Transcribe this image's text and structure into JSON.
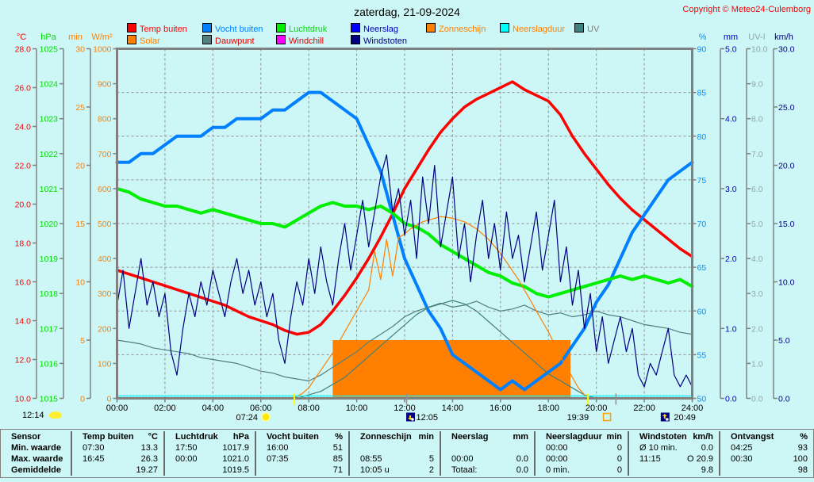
{
  "header": {
    "title": "zaterdag, 21-09-2024",
    "copyright": "Copyright © Meteo24-Culemborg"
  },
  "legend": {
    "row1": [
      {
        "label": "Temp buiten",
        "swatch": "#ff0000",
        "text_color": "#ff0000"
      },
      {
        "label": "Vocht buiten",
        "swatch": "#0080ff",
        "text_color": "#0080ff"
      },
      {
        "label": "Luchtdruk",
        "swatch": "#00ee00",
        "text_color": "#00dd00"
      },
      {
        "label": "Neerslag",
        "swatch": "#0000ff",
        "text_color": "#0000c0"
      },
      {
        "label": "Zonneschijn",
        "swatch": "#ff8000",
        "text_color": "#ff8000"
      },
      {
        "label": "Neerslagduur",
        "swatch": "#00ffff",
        "text_color": "#ff8000"
      },
      {
        "label": "UV",
        "swatch": "#3f8080",
        "text_color": "#808080"
      }
    ],
    "row2": [
      {
        "label": "Solar",
        "swatch": "#ff8000",
        "text_color": "#ff8000"
      },
      {
        "label": "Dauwpunt",
        "swatch": "#527f7f",
        "text_color": "#e00000"
      },
      {
        "label": "Windchill",
        "swatch": "#ff00ff",
        "text_color": "#e00000"
      },
      {
        "label": "Windstoten",
        "swatch": "#000080",
        "text_color": "#000080"
      }
    ]
  },
  "axes": {
    "left": [
      {
        "label": "°C",
        "color": "#ff0000",
        "min": 10,
        "max": 28,
        "step": 2,
        "dec": 1
      },
      {
        "label": "hPa",
        "color": "#00dd00",
        "min": 1015,
        "max": 1025,
        "step": 1,
        "dec": 0
      },
      {
        "label": "min",
        "color": "#ff8000",
        "min": 0,
        "max": 30,
        "step": 5,
        "dec": 0
      },
      {
        "label": "W/m²",
        "color": "#ff8000",
        "min": 0,
        "max": 1000,
        "step": 100,
        "dec": 0
      }
    ],
    "right": [
      {
        "label": "%",
        "color": "#0090ff",
        "min": 50,
        "max": 90,
        "step": 5,
        "dec": 0
      },
      {
        "label": "mm",
        "color": "#0000cc",
        "min": 0,
        "max": 5,
        "step": 1,
        "dec": 1
      },
      {
        "label": "UV-I",
        "color": "#90a8a8",
        "min": 0,
        "max": 10,
        "step": 1,
        "dec": 1
      },
      {
        "label": "km/h",
        "color": "#000080",
        "min": 0,
        "max": 30,
        "step": 5,
        "dec": 1
      }
    ]
  },
  "x_axis": {
    "labels": [
      "00:00",
      "02:00",
      "04:00",
      "06:00",
      "08:00",
      "10:00",
      "12:00",
      "14:00",
      "16:00",
      "18:00",
      "20:00",
      "22:00",
      "24:00"
    ],
    "hours": [
      0,
      2,
      4,
      6,
      8,
      10,
      12,
      14,
      16,
      18,
      20,
      22,
      24
    ]
  },
  "markers": {
    "day_length": {
      "label": "12:14"
    },
    "events": [
      {
        "time": "07:24",
        "hour": 7.4,
        "icon": "sunrise"
      },
      {
        "time": "12:05",
        "hour": 12.083,
        "icon": "moon-up"
      },
      {
        "time": "19:39",
        "hour": 19.65,
        "icon": "sunset"
      },
      {
        "time": "20:49",
        "hour": 20.817,
        "icon": "moon-down"
      }
    ]
  },
  "chart_data": {
    "type": "line",
    "title": "zaterdag, 21-09-2024",
    "x_unit": "hours",
    "x_range": [
      0,
      24
    ],
    "grid": true,
    "sunshine_block": {
      "name": "Zonneschijn",
      "axis": "min",
      "color": "#ff8000",
      "from_hour": 9.0,
      "to_hour": 18.92,
      "value": 5
    },
    "series": [
      {
        "name": "Temp buiten",
        "axis": "°C",
        "color": "#ff0000",
        "width": 3.5,
        "t0": 0,
        "dt": 0.5,
        "values": [
          16.6,
          16.4,
          16.2,
          16.0,
          15.8,
          15.6,
          15.4,
          15.2,
          15.0,
          14.8,
          14.5,
          14.2,
          14.0,
          13.8,
          13.5,
          13.3,
          13.4,
          13.8,
          14.5,
          15.3,
          16.2,
          17.2,
          18.3,
          19.5,
          20.8,
          21.8,
          22.8,
          23.7,
          24.4,
          25.0,
          25.4,
          25.7,
          26.0,
          26.3,
          25.9,
          25.6,
          25.3,
          24.6,
          23.5,
          22.6,
          21.8,
          21.0,
          20.3,
          19.7,
          19.2,
          18.7,
          18.2,
          17.7,
          17.3
        ]
      },
      {
        "name": "Vocht buiten",
        "axis": "%",
        "color": "#0080ff",
        "width": 4,
        "t0": 0,
        "dt": 0.5,
        "values": [
          77,
          77,
          78,
          78,
          79,
          80,
          80,
          80,
          81,
          81,
          82,
          82,
          82,
          83,
          83,
          84,
          85,
          85,
          84,
          83,
          82,
          79,
          76,
          71,
          66,
          63,
          60,
          58,
          55,
          54,
          53,
          52,
          51,
          52,
          51,
          52,
          53,
          54,
          56,
          58,
          61,
          63,
          66,
          69,
          71,
          73,
          75,
          76,
          77
        ]
      },
      {
        "name": "Luchtdruk",
        "axis": "hPa",
        "color": "#00ee00",
        "width": 4,
        "t0": 0,
        "dt": 0.5,
        "values": [
          1021.0,
          1020.9,
          1020.7,
          1020.6,
          1020.5,
          1020.5,
          1020.4,
          1020.3,
          1020.4,
          1020.3,
          1020.2,
          1020.1,
          1020.0,
          1020.0,
          1019.9,
          1020.1,
          1020.3,
          1020.5,
          1020.6,
          1020.5,
          1020.5,
          1020.4,
          1020.5,
          1020.3,
          1020.0,
          1019.9,
          1019.7,
          1019.4,
          1019.2,
          1019.0,
          1018.8,
          1018.6,
          1018.5,
          1018.3,
          1018.2,
          1018.0,
          1017.9,
          1018.0,
          1018.1,
          1018.2,
          1018.3,
          1018.4,
          1018.5,
          1018.4,
          1018.5,
          1018.4,
          1018.3,
          1018.4,
          1018.2
        ]
      },
      {
        "name": "Dauwpunt",
        "axis": "°C",
        "color": "#527f7f",
        "width": 1.2,
        "t0": 0,
        "dt": 0.5,
        "values": [
          13.0,
          12.9,
          12.8,
          12.6,
          12.5,
          12.4,
          12.3,
          12.1,
          12.0,
          11.9,
          11.8,
          11.6,
          11.4,
          11.3,
          11.1,
          11.0,
          10.9,
          11.2,
          11.6,
          12.0,
          12.4,
          12.9,
          13.3,
          13.7,
          14.2,
          14.5,
          14.7,
          14.9,
          14.7,
          14.8,
          15.0,
          14.7,
          14.5,
          14.6,
          14.8,
          14.5,
          14.3,
          14.4,
          14.2,
          14.3,
          14.5,
          14.3,
          14.2,
          14.0,
          13.8,
          13.7,
          13.6,
          13.4,
          13.3
        ]
      },
      {
        "name": "UV",
        "axis": "UV-I",
        "color": "#3f7f7f",
        "width": 1.2,
        "t0": 0,
        "dt": 0.5,
        "values": [
          0,
          0,
          0,
          0,
          0,
          0,
          0,
          0,
          0,
          0,
          0,
          0,
          0,
          0,
          0,
          0,
          0.1,
          0.2,
          0.4,
          0.6,
          0.9,
          1.2,
          1.5,
          1.8,
          2.1,
          2.4,
          2.6,
          2.7,
          2.8,
          2.7,
          2.5,
          2.2,
          1.9,
          1.6,
          1.3,
          1.0,
          0.7,
          0.5,
          0.3,
          0.1,
          0,
          0,
          0,
          0,
          0,
          0,
          0,
          0,
          0
        ]
      },
      {
        "name": "Solar",
        "axis": "W/m²",
        "color": "#ff8000",
        "width": 1.2,
        "t0": 0,
        "dt": 0.25,
        "values": [
          0,
          0,
          0,
          0,
          0,
          0,
          0,
          0,
          0,
          0,
          0,
          0,
          0,
          0,
          0,
          0,
          0,
          0,
          0,
          0,
          0,
          0,
          0,
          0,
          0,
          0,
          0,
          0,
          0,
          0,
          5,
          15,
          30,
          55,
          80,
          105,
          130,
          160,
          190,
          220,
          250,
          280,
          310,
          420,
          340,
          455,
          350,
          460,
          470,
          485,
          495,
          505,
          510,
          515,
          520,
          518,
          515,
          510,
          505,
          495,
          485,
          470,
          455,
          435,
          415,
          390,
          365,
          340,
          310,
          280,
          250,
          220,
          190,
          155,
          120,
          90,
          60,
          30,
          10,
          0,
          0,
          0,
          0,
          0,
          0,
          0,
          0,
          0,
          0,
          0,
          0,
          0,
          0,
          0,
          0,
          0,
          0
        ]
      },
      {
        "name": "Windstoten",
        "axis": "km/h",
        "color": "#000080",
        "width": 1.2,
        "t0": 0,
        "dt": 0.25,
        "values": [
          8,
          11,
          6,
          9,
          12,
          8,
          10,
          7,
          9,
          4,
          2,
          6,
          9,
          7,
          10,
          8,
          11,
          9,
          7,
          10,
          12,
          9,
          11,
          8,
          10,
          7,
          9,
          5,
          3,
          7,
          10,
          8,
          12,
          9,
          13,
          10,
          8,
          12,
          15,
          11,
          14,
          17,
          13,
          16,
          19,
          20.9,
          16,
          18,
          14,
          17,
          12,
          19,
          15,
          20,
          13,
          16,
          19,
          12,
          15,
          10,
          14,
          17,
          12,
          15,
          11,
          16,
          12,
          14,
          10,
          13,
          16,
          11,
          14,
          17,
          10,
          13,
          8,
          11,
          6,
          9,
          4,
          7,
          3,
          5,
          7,
          4,
          6,
          2,
          1,
          3,
          2,
          4,
          6,
          2,
          1,
          2,
          1
        ]
      },
      {
        "name": "Neerslag",
        "axis": "mm",
        "color": "#0000cc",
        "width": 1.2,
        "style": "dotted",
        "constant": 0
      },
      {
        "name": "Neerslagduur",
        "axis": "min",
        "color": "#00ffff",
        "width": 1.2,
        "constant": 0
      }
    ]
  },
  "table": {
    "groups": [
      {
        "name": "Sensor",
        "unit": ""
      },
      {
        "name": "Temp buiten",
        "unit": "°C"
      },
      {
        "name": "Luchtdruk",
        "unit": "hPa"
      },
      {
        "name": "Vocht buiten",
        "unit": "%"
      },
      {
        "name": "Zonneschijn",
        "unit": "min"
      },
      {
        "name": "Neerslag",
        "unit": "mm"
      },
      {
        "name": "Neerslagduur",
        "unit": "min"
      },
      {
        "name": "Windstoten",
        "unit": "km/h"
      },
      {
        "name": "Ontvangst",
        "unit": "%"
      }
    ],
    "rows": [
      {
        "label": "Min. waarde",
        "cells": [
          [
            "07:30",
            "13.3"
          ],
          [
            "17:50",
            "1017.9"
          ],
          [
            "16:00",
            "51"
          ],
          [
            "",
            ""
          ],
          [
            "",
            ""
          ],
          [
            "00:00",
            "0"
          ],
          [
            "Ø 10 min.",
            "0.0"
          ],
          [
            "04:25",
            "93"
          ]
        ]
      },
      {
        "label": "Max. waarde",
        "cells": [
          [
            "16:45",
            "26.3"
          ],
          [
            "00:00",
            "1021.0"
          ],
          [
            "07:35",
            "85"
          ],
          [
            "08:55",
            "5"
          ],
          [
            "00:00",
            "0.0"
          ],
          [
            "00:00",
            "0"
          ],
          [
            "11:15",
            "O 20.9"
          ],
          [
            "00:30",
            "100"
          ]
        ]
      },
      {
        "label": "Gemiddelde",
        "cells": [
          [
            "",
            "19.27"
          ],
          [
            "",
            "1019.5"
          ],
          [
            "",
            "71"
          ],
          [
            "10:05 u",
            "2"
          ],
          [
            "Totaal:",
            "0.0"
          ],
          [
            "0 min.",
            "0"
          ],
          [
            "",
            "9.8"
          ],
          [
            "",
            "98"
          ]
        ]
      }
    ]
  }
}
